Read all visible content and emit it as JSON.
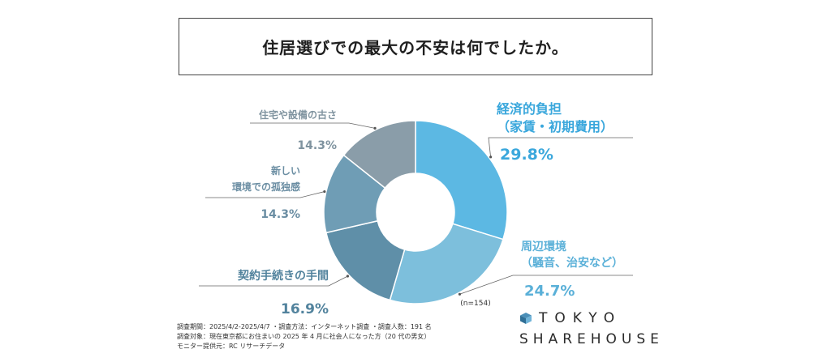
{
  "title": "住居選びでの最大の不安は何でしたか。",
  "chart_data": {
    "type": "pie",
    "variant": "donut",
    "sample_size": "(n=154)",
    "slices": [
      {
        "label_lines": [
          "経済的負担",
          "（家賃・初期費用）"
        ],
        "value": 29.8,
        "value_label": "29.8%",
        "color": "#5cb8e3",
        "label_color": "#3aa7dc"
      },
      {
        "label_lines": [
          "周辺環境",
          "（騒音、治安など）"
        ],
        "value": 24.7,
        "value_label": "24.7%",
        "color": "#7dbfdc",
        "label_color": "#5ab0d8"
      },
      {
        "label_lines": [
          "契約手続きの手間"
        ],
        "value": 16.9,
        "value_label": "16.9%",
        "color": "#5f8fa8",
        "label_color": "#52839d"
      },
      {
        "label_lines": [
          "新しい",
          "環境での孤独感"
        ],
        "value": 14.3,
        "value_label": "14.3%",
        "color": "#6f9db5",
        "label_color": "#6b8ea3"
      },
      {
        "label_lines": [
          "住宅や設備の古さ"
        ],
        "value": 14.3,
        "value_label": "14.3%",
        "color": "#8a9da9",
        "label_color": "#7f939f"
      }
    ]
  },
  "footer": {
    "line1": "調査期間：2025/4/2-2025/4/7 ・調査方法：インターネット調査 ・調査人数：191 名",
    "line2": "調査対象：現在東京都にお住まいの 2025 年 4 月に社会人になった方（20 代の男女）",
    "line3": "モニター提供元：RC リサーチデータ"
  },
  "logo": {
    "line1": "TOKYO",
    "line2": "SHAREHOUSE"
  }
}
